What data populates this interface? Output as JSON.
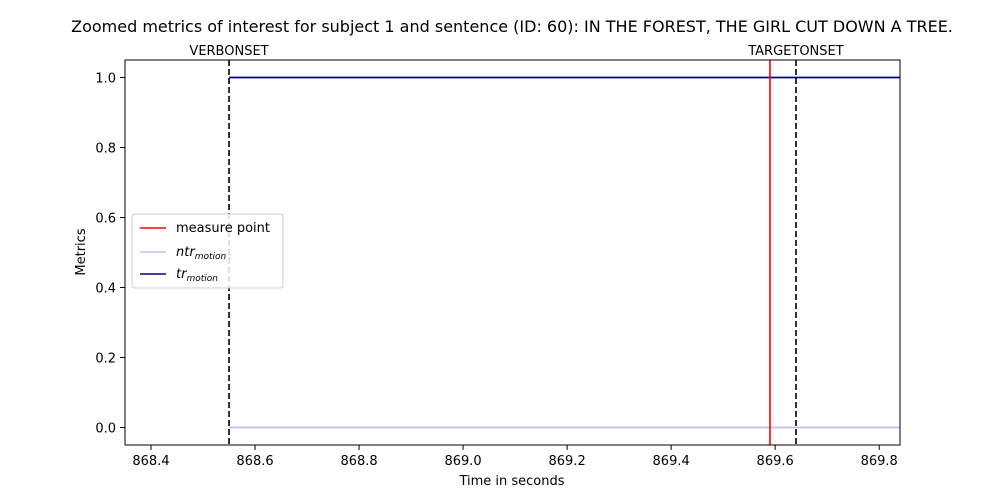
{
  "chart_data": {
    "type": "line",
    "title": "Zoomed metrics of interest for subject 1 and sentence (ID: 60): IN THE FOREST, THE GIRL CUT DOWN A TREE.",
    "xlabel": "Time in seconds",
    "ylabel": "Metrics",
    "xlim": [
      868.35,
      869.84
    ],
    "ylim": [
      -0.05,
      1.05
    ],
    "xticks": [
      "868.4",
      "868.6",
      "868.8",
      "869.0",
      "869.2",
      "869.4",
      "869.6",
      "869.8"
    ],
    "xtick_values": [
      868.4,
      868.6,
      868.8,
      869.0,
      869.2,
      869.4,
      869.6,
      869.8
    ],
    "yticks": [
      "0.0",
      "0.2",
      "0.4",
      "0.6",
      "0.8",
      "1.0"
    ],
    "ytick_values": [
      0.0,
      0.2,
      0.4,
      0.6,
      0.8,
      1.0
    ],
    "grid": false,
    "legend_position": "center-left",
    "series": [
      {
        "name": "ntr",
        "subscript": "motion",
        "color": "#bfbff5",
        "x": [
          868.55,
          869.84
        ],
        "y": [
          0,
          0
        ]
      },
      {
        "name": "tr",
        "subscript": "motion",
        "color": "#000080",
        "x": [
          868.55,
          869.84
        ],
        "y": [
          1,
          1
        ]
      }
    ],
    "vlines": [
      {
        "x": 868.55,
        "label": "VERBONSET",
        "style": "dashed",
        "color": "#000000"
      },
      {
        "x": 869.64,
        "label": "TARGETONSET",
        "style": "dashed",
        "color": "#000000"
      },
      {
        "x": 869.59,
        "label": "",
        "style": "solid",
        "color": "#ff0000",
        "legend": "measure point"
      }
    ]
  }
}
